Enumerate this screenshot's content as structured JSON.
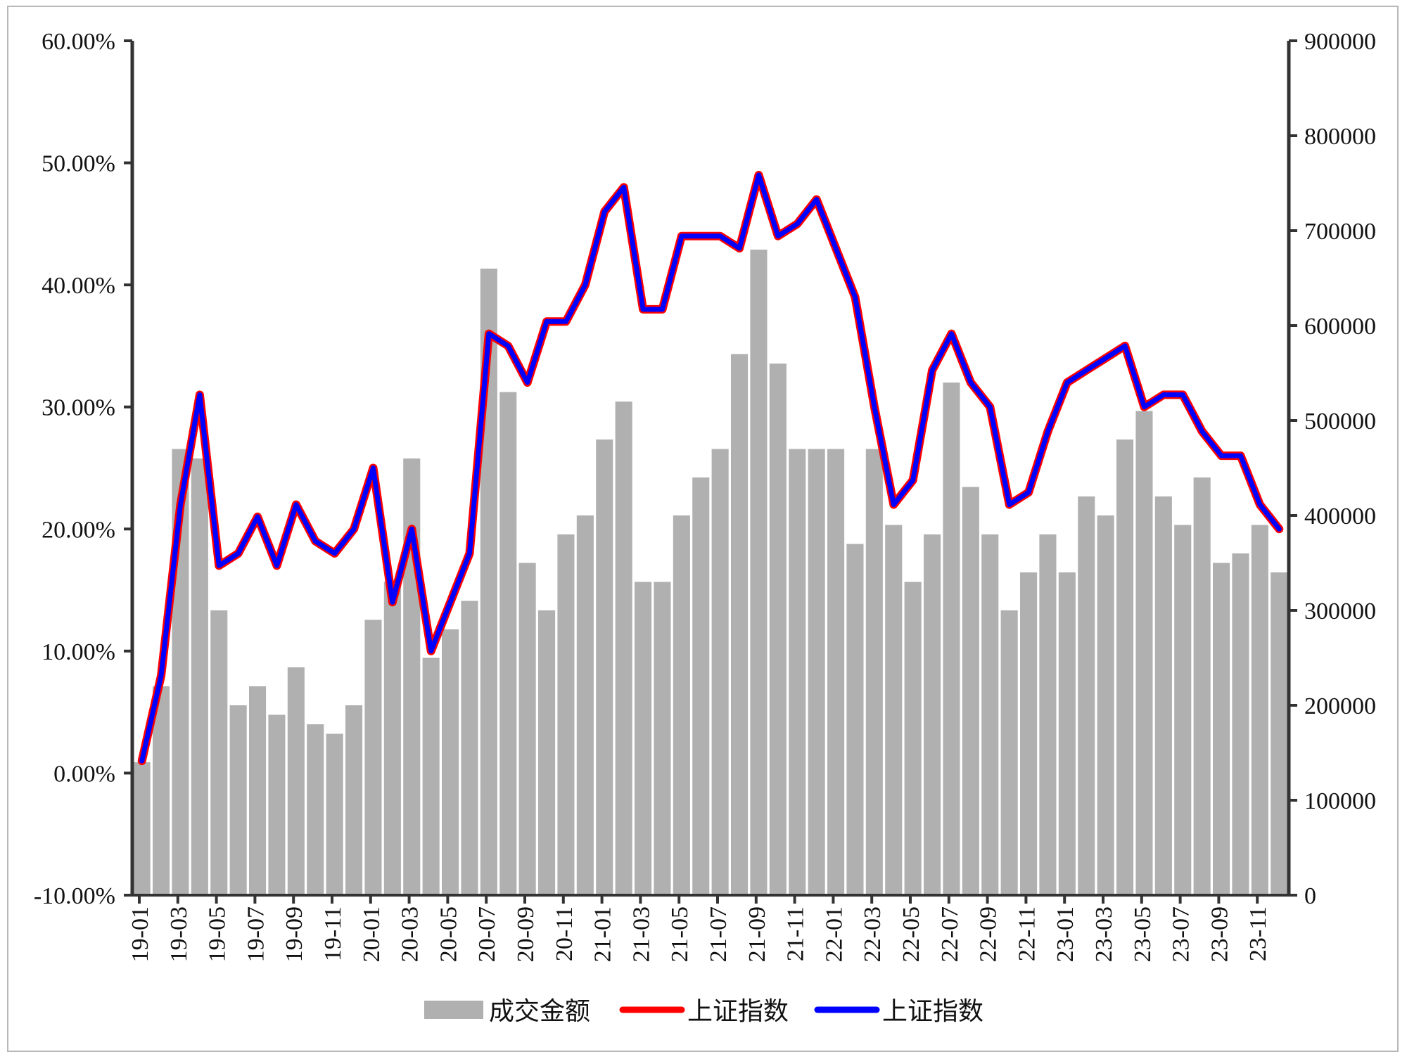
{
  "chart_data": {
    "type": "bar",
    "left_axis": {
      "min": -10,
      "max": 60,
      "ticks": [
        "60.00%",
        "50.00%",
        "40.00%",
        "30.00%",
        "20.00%",
        "10.00%",
        "0.00%",
        "-10.00%"
      ]
    },
    "right_axis": {
      "min": 0,
      "max": 900000,
      "ticks": [
        "900000",
        "800000",
        "700000",
        "600000",
        "500000",
        "400000",
        "300000",
        "200000",
        "100000",
        "0"
      ]
    },
    "x_labels": [
      "19-01",
      "19-03",
      "19-05",
      "19-07",
      "19-09",
      "19-11",
      "20-01",
      "20-03",
      "20-05",
      "20-07",
      "20-09",
      "20-11",
      "21-01",
      "21-03",
      "21-05",
      "21-07",
      "21-09",
      "21-11",
      "22-01",
      "22-03",
      "22-05",
      "22-07",
      "22-09",
      "22-11",
      "23-01",
      "23-03",
      "23-05",
      "23-07",
      "23-09",
      "23-11"
    ],
    "legend": [
      {
        "label": "成交金额",
        "color": "#b0b0b0",
        "kind": "bar"
      },
      {
        "label": "上证指数",
        "color": "#ff0000",
        "kind": "line"
      },
      {
        "label": "上证指数",
        "color": "#0000ff",
        "kind": "line"
      }
    ],
    "series": [
      {
        "name": "成交金额",
        "axis": "right",
        "x": [
          "19-01",
          "19-02",
          "19-03",
          "19-04",
          "19-05",
          "19-06",
          "19-07",
          "19-08",
          "19-09",
          "19-10",
          "19-11",
          "19-12",
          "20-01",
          "20-02",
          "20-03",
          "20-04",
          "20-05",
          "20-06",
          "20-07",
          "20-08",
          "20-09",
          "20-10",
          "20-11",
          "20-12",
          "21-01",
          "21-02",
          "21-03",
          "21-04",
          "21-05",
          "21-06",
          "21-07",
          "21-08",
          "21-09",
          "21-10",
          "21-11",
          "21-12",
          "22-01",
          "22-02",
          "22-03",
          "22-04",
          "22-05",
          "22-06",
          "22-07",
          "22-08",
          "22-09",
          "22-10",
          "22-11",
          "22-12",
          "23-01",
          "23-02",
          "23-03",
          "23-04",
          "23-05",
          "23-06",
          "23-07",
          "23-08",
          "23-09",
          "23-10",
          "23-11",
          "23-12"
        ],
        "values": [
          140000,
          220000,
          470000,
          460000,
          300000,
          200000,
          220000,
          190000,
          240000,
          180000,
          170000,
          200000,
          290000,
          330000,
          460000,
          250000,
          280000,
          310000,
          660000,
          530000,
          350000,
          300000,
          380000,
          400000,
          480000,
          520000,
          330000,
          330000,
          400000,
          440000,
          470000,
          570000,
          680000,
          560000,
          470000,
          470000,
          470000,
          370000,
          470000,
          390000,
          330000,
          380000,
          540000,
          430000,
          380000,
          300000,
          340000,
          380000,
          340000,
          420000,
          400000,
          480000,
          510000,
          420000,
          390000,
          440000,
          350000,
          360000,
          390000,
          340000
        ]
      },
      {
        "name": "上证指数",
        "axis": "left",
        "x": [
          "19-01",
          "19-02",
          "19-03",
          "19-04",
          "19-05",
          "19-06",
          "19-07",
          "19-08",
          "19-09",
          "19-10",
          "19-11",
          "19-12",
          "20-01",
          "20-02",
          "20-03",
          "20-04",
          "20-05",
          "20-06",
          "20-07",
          "20-08",
          "20-09",
          "20-10",
          "20-11",
          "20-12",
          "21-01",
          "21-02",
          "21-03",
          "21-04",
          "21-05",
          "21-06",
          "21-07",
          "21-08",
          "21-09",
          "21-10",
          "21-11",
          "21-12",
          "22-01",
          "22-02",
          "22-03",
          "22-04",
          "22-05",
          "22-06",
          "22-07",
          "22-08",
          "22-09",
          "22-10",
          "22-11",
          "22-12",
          "23-01",
          "23-02",
          "23-03",
          "23-04",
          "23-05",
          "23-06",
          "23-07",
          "23-08",
          "23-09",
          "23-10",
          "23-11",
          "23-12"
        ],
        "values": [
          1,
          8,
          22,
          31,
          17,
          18,
          21,
          17,
          22,
          19,
          18,
          20,
          25,
          14,
          20,
          10,
          14,
          18,
          36,
          35,
          32,
          37,
          37,
          40,
          46,
          48,
          38,
          38,
          44,
          44,
          44,
          43,
          49,
          44,
          45,
          47,
          43,
          39,
          30,
          22,
          24,
          33,
          36,
          32,
          30,
          22,
          23,
          28,
          32,
          33,
          34,
          35,
          30,
          31,
          31,
          28,
          26,
          26,
          22,
          20
        ]
      },
      {
        "name": "上证指数",
        "axis": "left",
        "x": [
          "19-01",
          "19-02",
          "19-03",
          "19-04",
          "19-05",
          "19-06",
          "19-07",
          "19-08",
          "19-09",
          "19-10",
          "19-11",
          "19-12",
          "20-01",
          "20-02",
          "20-03",
          "20-04",
          "20-05",
          "20-06",
          "20-07",
          "20-08",
          "20-09",
          "20-10",
          "20-11",
          "20-12",
          "21-01",
          "21-02",
          "21-03",
          "21-04",
          "21-05",
          "21-06",
          "21-07",
          "21-08",
          "21-09",
          "21-10",
          "21-11",
          "21-12",
          "22-01",
          "22-02",
          "22-03",
          "22-04",
          "22-05",
          "22-06",
          "22-07",
          "22-08",
          "22-09",
          "22-10",
          "22-11",
          "22-12",
          "23-01",
          "23-02",
          "23-03",
          "23-04",
          "23-05",
          "23-06",
          "23-07",
          "23-08",
          "23-09",
          "23-10",
          "23-11",
          "23-12"
        ],
        "values": [
          1,
          8,
          22,
          31,
          17,
          18,
          21,
          17,
          22,
          19,
          18,
          20,
          25,
          14,
          20,
          10,
          14,
          18,
          36,
          35,
          32,
          37,
          37,
          40,
          46,
          48,
          38,
          38,
          44,
          44,
          44,
          43,
          49,
          44,
          45,
          47,
          43,
          39,
          30,
          22,
          24,
          33,
          36,
          32,
          30,
          22,
          23,
          28,
          32,
          33,
          34,
          35,
          30,
          31,
          31,
          28,
          26,
          26,
          22,
          20
        ]
      }
    ]
  }
}
